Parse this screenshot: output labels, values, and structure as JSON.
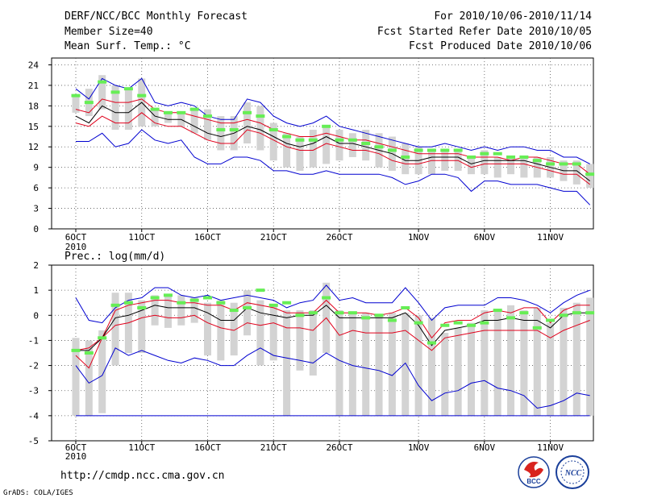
{
  "header": {
    "title": "DERF/NCC/BCC Monthly Forecast",
    "member_size": "Member Size=40",
    "period": "For 2010/10/06-2010/11/14",
    "fcst_started": "Fcst Started Refer Date 2010/10/05",
    "fcst_produced": "Fcst Produced Date 2010/10/06"
  },
  "footer": {
    "url": "http://cmdp.ncc.cma.gov.cn",
    "credit": "GrADS: COLA/IGES",
    "logo_bcc": "BCC",
    "logo_ncc": "NCC"
  },
  "colors": {
    "box": "#d3d3d3",
    "median": "#000000",
    "quartile": "#e0001b",
    "extreme": "#0000d0",
    "observed": "#66ee55",
    "grid": "#555555"
  },
  "chart_data": [
    {
      "id": "temp",
      "type": "line",
      "title": "Mean Surf. Temp.: °C",
      "ylim": [
        0,
        25
      ],
      "yticks": [
        0,
        3,
        6,
        9,
        12,
        15,
        18,
        21,
        24
      ],
      "x_days": 40,
      "x_ticks": [
        {
          "day": 0,
          "label": "6OCT"
        },
        {
          "day": 5,
          "label": "11OCT"
        },
        {
          "day": 10,
          "label": "16OCT"
        },
        {
          "day": 15,
          "label": "21OCT"
        },
        {
          "day": 20,
          "label": "26OCT"
        },
        {
          "day": 26,
          "label": "1NOV"
        },
        {
          "day": 31,
          "label": "6NOV"
        },
        {
          "day": 36,
          "label": "11NOV"
        }
      ],
      "year_label": "2010",
      "box_low": [
        17.0,
        16.5,
        17.5,
        14.5,
        14.5,
        15.0,
        15.0,
        15.5,
        15.0,
        14.0,
        13.0,
        11.5,
        11.5,
        12.5,
        11.5,
        10.0,
        9.0,
        8.5,
        9.0,
        9.5,
        10.0,
        10.5,
        10.0,
        9.0,
        8.5,
        8.0,
        8.0,
        8.0,
        8.5,
        8.5,
        8.0,
        8.0,
        7.5,
        8.0,
        7.5,
        7.5,
        7.5,
        7.0,
        6.5,
        6.0
      ],
      "box_high": [
        19.5,
        20.5,
        22.5,
        21.0,
        20.5,
        22.0,
        17.5,
        17.0,
        17.0,
        17.5,
        17.5,
        16.5,
        16.5,
        18.5,
        18.0,
        15.5,
        14.0,
        13.5,
        14.5,
        15.0,
        14.5,
        14.0,
        14.5,
        14.0,
        13.5,
        12.5,
        12.0,
        11.5,
        11.5,
        11.5,
        10.5,
        11.5,
        10.5,
        10.5,
        10.5,
        10.5,
        10.5,
        10.0,
        10.0,
        9.5
      ],
      "series": [
        {
          "name": "max",
          "role": "extreme",
          "values": [
            20.5,
            19.0,
            22.0,
            21.0,
            20.5,
            22.0,
            18.5,
            18.0,
            18.5,
            18.0,
            16.5,
            16.0,
            16.0,
            19.0,
            18.5,
            16.5,
            15.5,
            15.0,
            15.5,
            16.5,
            15.0,
            14.5,
            14.0,
            13.5,
            13.0,
            12.5,
            12.0,
            12.0,
            12.5,
            12.0,
            11.5,
            12.0,
            11.5,
            12.0,
            12.0,
            11.5,
            11.5,
            10.5,
            10.5,
            9.5
          ]
        },
        {
          "name": "upper quartile",
          "role": "quartile",
          "values": [
            17.5,
            17.0,
            19.0,
            18.5,
            18.5,
            19.0,
            17.5,
            17.0,
            17.0,
            16.5,
            16.0,
            15.5,
            15.5,
            16.0,
            15.5,
            14.5,
            14.0,
            13.5,
            13.5,
            14.0,
            13.5,
            13.0,
            13.0,
            12.5,
            12.0,
            11.5,
            11.0,
            11.0,
            11.0,
            11.0,
            10.5,
            10.5,
            10.5,
            10.0,
            10.5,
            10.5,
            10.0,
            9.5,
            9.5,
            8.0
          ]
        },
        {
          "name": "median",
          "role": "median",
          "values": [
            16.5,
            15.5,
            18.0,
            17.0,
            17.0,
            18.5,
            16.5,
            16.0,
            16.0,
            15.0,
            14.0,
            13.5,
            14.0,
            15.0,
            14.5,
            13.5,
            12.5,
            12.0,
            12.5,
            13.5,
            12.5,
            12.5,
            12.0,
            11.5,
            11.0,
            10.0,
            10.0,
            10.5,
            10.5,
            10.5,
            9.5,
            10.0,
            10.0,
            10.0,
            10.0,
            9.5,
            9.0,
            8.5,
            8.5,
            7.0
          ]
        },
        {
          "name": "lower quartile",
          "role": "quartile",
          "values": [
            15.5,
            15.0,
            16.5,
            15.5,
            15.5,
            17.0,
            15.5,
            15.0,
            15.0,
            14.0,
            13.0,
            12.5,
            12.5,
            14.5,
            14.0,
            13.0,
            12.0,
            11.5,
            11.5,
            12.5,
            12.0,
            11.5,
            11.5,
            11.0,
            10.0,
            9.5,
            9.5,
            10.0,
            10.0,
            10.0,
            9.0,
            9.5,
            9.5,
            9.5,
            9.5,
            9.0,
            8.5,
            8.0,
            8.0,
            6.5
          ]
        },
        {
          "name": "min",
          "role": "extreme",
          "values": [
            12.8,
            12.8,
            14.0,
            12.0,
            12.5,
            14.5,
            13.0,
            12.5,
            13.0,
            10.5,
            9.5,
            9.5,
            10.5,
            10.5,
            10.0,
            8.5,
            8.5,
            8.0,
            8.0,
            8.5,
            8.0,
            8.0,
            8.0,
            8.0,
            7.5,
            6.5,
            7.0,
            8.0,
            8.0,
            7.5,
            5.5,
            7.0,
            7.0,
            6.5,
            6.5,
            6.5,
            6.0,
            5.5,
            5.5,
            3.5
          ]
        },
        {
          "name": "observed",
          "role": "observed",
          "values": [
            19.5,
            18.5,
            21.5,
            20.0,
            20.5,
            19.5,
            17.5,
            17.0,
            17.0,
            17.5,
            16.5,
            14.5,
            14.5,
            17.0,
            16.5,
            14.5,
            13.5,
            13.0,
            13.0,
            15.0,
            13.0,
            13.0,
            12.5,
            12.0,
            11.5,
            10.5,
            11.5,
            11.5,
            11.5,
            11.5,
            10.5,
            11.0,
            11.0,
            10.5,
            10.5,
            10.0,
            9.5,
            9.5,
            9.5,
            8.0
          ]
        }
      ]
    },
    {
      "id": "prec",
      "type": "line",
      "title": "Prec.: log(mm/d)",
      "ylim": [
        -5,
        2
      ],
      "yticks": [
        -5,
        -4,
        -3,
        -2,
        -1,
        0,
        1,
        2
      ],
      "x_days": 40,
      "x_ticks": [
        {
          "day": 0,
          "label": "6OCT"
        },
        {
          "day": 5,
          "label": "11OCT"
        },
        {
          "day": 10,
          "label": "16OCT"
        },
        {
          "day": 15,
          "label": "21OCT"
        },
        {
          "day": 20,
          "label": "26OCT"
        },
        {
          "day": 26,
          "label": "1NOV"
        },
        {
          "day": 31,
          "label": "6NOV"
        },
        {
          "day": 36,
          "label": "11NOV"
        }
      ],
      "year_label": "2010",
      "box_low": [
        -4.0,
        -4.0,
        -3.9,
        -2.0,
        -1.5,
        -1.5,
        -0.4,
        -0.5,
        -0.4,
        -0.3,
        -1.6,
        -1.8,
        -1.6,
        -0.8,
        -2.0,
        -1.8,
        -4.0,
        -2.2,
        -2.4,
        -1.5,
        -4.0,
        -4.0,
        -4.0,
        -4.0,
        -4.0,
        -4.0,
        -4.0,
        -4.0,
        -4.0,
        -4.0,
        -4.0,
        -4.0,
        -4.0,
        -4.0,
        -4.0,
        -4.0,
        -4.0,
        -4.0,
        -4.0,
        -4.0
      ],
      "box_high": [
        -0.9,
        -1.0,
        -0.6,
        0.9,
        0.9,
        0.6,
        0.8,
        0.8,
        0.8,
        0.7,
        0.5,
        0.6,
        0.5,
        1.0,
        0.6,
        0.4,
        0.2,
        0.2,
        0.2,
        1.3,
        0.2,
        0.1,
        0.1,
        0.0,
        0.1,
        0.1,
        0.0,
        -0.1,
        -0.7,
        -0.5,
        -0.3,
        0.2,
        0.2,
        0.4,
        0.2,
        0.3,
        -0.3,
        0.3,
        0.5,
        0.7
      ],
      "series": [
        {
          "name": "max",
          "role": "extreme",
          "values": [
            0.7,
            -0.2,
            -0.3,
            0.3,
            0.6,
            0.7,
            1.1,
            1.1,
            0.8,
            0.7,
            0.8,
            0.6,
            0.7,
            0.8,
            0.7,
            0.6,
            0.3,
            0.5,
            0.6,
            1.2,
            0.6,
            0.7,
            0.5,
            0.5,
            0.5,
            1.1,
            0.5,
            -0.2,
            0.3,
            0.4,
            0.4,
            0.4,
            0.7,
            0.7,
            0.6,
            0.4,
            0.1,
            0.5,
            0.8,
            1.0
          ]
        },
        {
          "name": "upper quartile",
          "role": "quartile",
          "values": [
            -1.4,
            -1.3,
            -0.9,
            0.2,
            0.4,
            0.5,
            0.6,
            0.6,
            0.5,
            0.5,
            0.4,
            0.4,
            0.2,
            0.5,
            0.4,
            0.3,
            0.1,
            0.1,
            0.1,
            0.6,
            0.1,
            0.1,
            0.1,
            0.0,
            0.1,
            0.3,
            -0.1,
            -0.9,
            -0.3,
            -0.2,
            -0.2,
            0.1,
            0.2,
            0.1,
            0.3,
            0.3,
            -0.3,
            0.2,
            0.4,
            0.4
          ]
        },
        {
          "name": "median",
          "role": "median",
          "values": [
            -1.4,
            -1.4,
            -0.9,
            -0.1,
            0.0,
            0.2,
            0.4,
            0.3,
            0.3,
            0.3,
            0.1,
            -0.2,
            -0.2,
            0.3,
            0.1,
            0.0,
            -0.1,
            0.0,
            0.0,
            0.4,
            -0.1,
            -0.1,
            -0.1,
            -0.1,
            -0.1,
            0.1,
            -0.4,
            -1.2,
            -0.6,
            -0.5,
            -0.4,
            -0.2,
            -0.2,
            -0.1,
            -0.2,
            -0.2,
            -0.5,
            0.0,
            0.1,
            0.1
          ]
        },
        {
          "name": "lower quartile",
          "role": "quartile",
          "values": [
            -1.6,
            -2.1,
            -0.9,
            -0.4,
            -0.3,
            -0.1,
            0.0,
            -0.1,
            -0.1,
            0.0,
            -0.3,
            -0.5,
            -0.6,
            -0.3,
            -0.4,
            -0.3,
            -0.5,
            -0.5,
            -0.6,
            -0.1,
            -0.8,
            -0.6,
            -0.7,
            -0.7,
            -0.7,
            -0.6,
            -1.0,
            -1.4,
            -0.9,
            -0.8,
            -0.7,
            -0.6,
            -0.6,
            -0.6,
            -0.6,
            -0.6,
            -0.9,
            -0.6,
            -0.4,
            -0.2
          ]
        },
        {
          "name": "min",
          "role": "extreme",
          "values": [
            -2.0,
            -2.7,
            -2.4,
            -1.3,
            -1.6,
            -1.4,
            -1.6,
            -1.8,
            -1.9,
            -1.7,
            -1.8,
            -2.0,
            -2.0,
            -1.6,
            -1.3,
            -1.6,
            -1.7,
            -1.8,
            -1.9,
            -1.5,
            -1.8,
            -2.0,
            -2.1,
            -2.2,
            -2.4,
            -1.9,
            -2.8,
            -3.4,
            -3.1,
            -3.0,
            -2.7,
            -2.6,
            -2.9,
            -3.0,
            -3.2,
            -3.7,
            -3.6,
            -3.4,
            -3.1,
            -3.2
          ]
        },
        {
          "name": "observed",
          "role": "observed",
          "values": [
            -1.4,
            -1.5,
            -0.9,
            0.4,
            0.5,
            0.3,
            0.7,
            0.8,
            0.5,
            0.6,
            0.7,
            0.5,
            0.2,
            0.3,
            1.0,
            0.4,
            0.5,
            0.0,
            0.1,
            0.7,
            0.1,
            0.1,
            -0.1,
            0.0,
            -0.2,
            0.3,
            -0.3,
            -1.1,
            -0.4,
            -0.3,
            -0.4,
            -0.3,
            0.2,
            -0.1,
            0.1,
            -0.5,
            -0.2,
            0.0,
            0.1,
            0.1
          ]
        }
      ]
    }
  ]
}
